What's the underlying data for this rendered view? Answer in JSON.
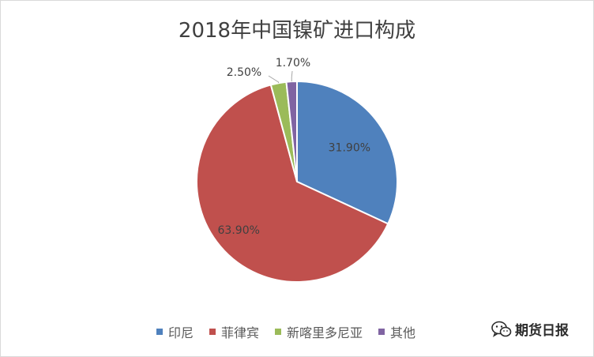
{
  "chart_data": {
    "type": "pie",
    "title": "2018年中国镍矿进口构成",
    "slices": [
      {
        "label": "印尼",
        "value": 31.9,
        "display": "31.90%",
        "color": "#4f81bd"
      },
      {
        "label": "菲律宾",
        "value": 63.9,
        "display": "63.90%",
        "color": "#c0504d"
      },
      {
        "label": "新喀里多尼亚",
        "value": 2.5,
        "display": "2.50%",
        "color": "#9bbb59"
      },
      {
        "label": "其他",
        "value": 1.7,
        "display": "1.70%",
        "color": "#8064a2"
      }
    ],
    "legend_position": "bottom"
  },
  "watermark": {
    "text": "期货日报",
    "icon": "wechat-icon"
  }
}
